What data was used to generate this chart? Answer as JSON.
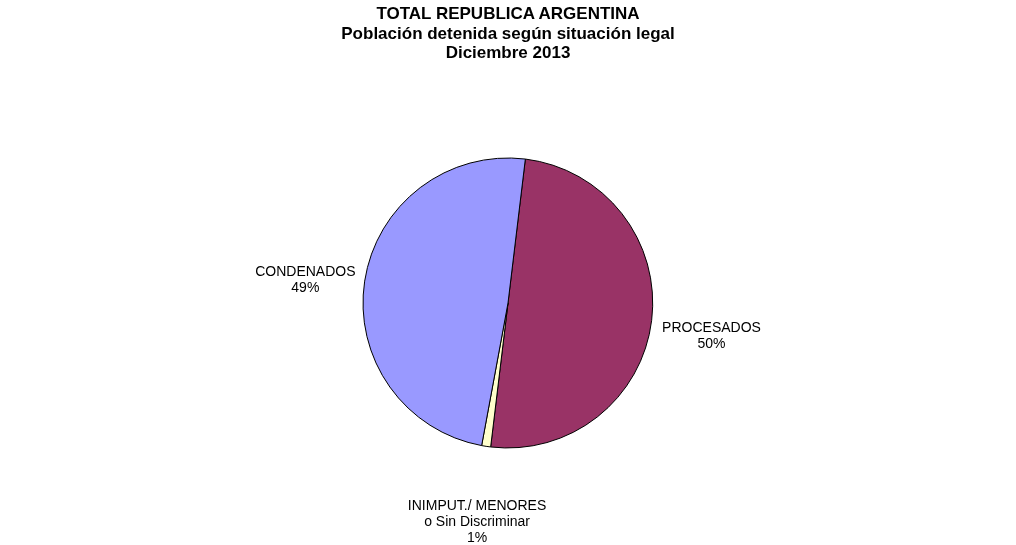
{
  "chart_data": {
    "type": "pie",
    "title": "TOTAL REPUBLICA ARGENTINA",
    "subtitle": [
      "Población detenida según situación legal",
      "Diciembre 2013"
    ],
    "categories": [
      "PROCESADOS",
      "INIMPUT./ MENORES\no Sin Discriminar",
      "CONDENADOS"
    ],
    "values": [
      50,
      1,
      49
    ],
    "value_labels": [
      "50%",
      "1%",
      "49%"
    ],
    "colors": [
      "#993366",
      "#ffffcc",
      "#9999ff"
    ],
    "legend": false
  }
}
